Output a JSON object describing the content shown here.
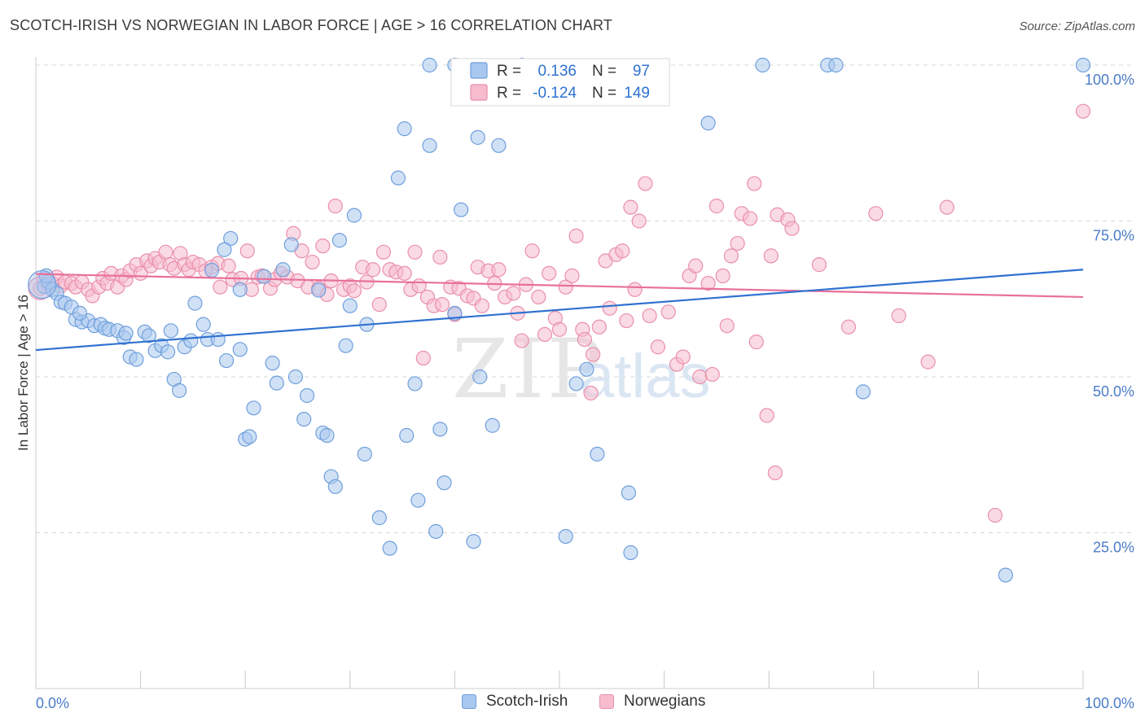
{
  "header": {
    "title": "SCOTCH-IRISH VS NORWEGIAN IN LABOR FORCE | AGE > 16 CORRELATION CHART",
    "source": "Source: ZipAtlas.com"
  },
  "watermark": {
    "zip": "ZIP",
    "atlas": "atlas"
  },
  "colors": {
    "blue_fill": "#a9c8ef",
    "blue_stroke": "#6f9fdc",
    "blue_line": "#2f72d0",
    "pink_fill": "#f6bccd",
    "pink_stroke": "#ea8fab",
    "pink_line": "#e8709a",
    "tick_text": "#4a7cc7",
    "grid": "#d7d7d7"
  },
  "legend": {
    "r_label": "R =",
    "n_label": "N =",
    "rows": [
      {
        "series": "Scotch-Irish",
        "r": "0.136",
        "n": "97"
      },
      {
        "series": "Norwegians",
        "r": "-0.124",
        "n": "149"
      }
    ]
  },
  "chart_data": {
    "type": "scatter",
    "title": "SCOTCH-IRISH VS NORWEGIAN IN LABOR FORCE | AGE > 16 CORRELATION CHART",
    "xlabel": "",
    "ylabel": "In Labor Force | Age > 16",
    "xlim": [
      0,
      100
    ],
    "ylim": [
      0,
      100
    ],
    "x_tick_labels": [
      "0.0%",
      "100.0%"
    ],
    "y_ticks": [
      25,
      50,
      75,
      100
    ],
    "y_tick_labels": [
      "25.0%",
      "50.0%",
      "75.0%",
      "100.0%"
    ],
    "grid": true,
    "legend_position": "top-center",
    "series": [
      {
        "name": "Scotch-Irish",
        "r": 0.136,
        "n": 97,
        "trend": [
          [
            0,
            54.3
          ],
          [
            100,
            67.2
          ]
        ],
        "points": [
          [
            0.8,
            64.5
          ],
          [
            1.2,
            65.2
          ],
          [
            1.6,
            64.0
          ],
          [
            2.0,
            63.4
          ],
          [
            2.4,
            62.0
          ],
          [
            2.8,
            61.8
          ],
          [
            3.4,
            61.2
          ],
          [
            3.8,
            59.2
          ],
          [
            4.4,
            58.8
          ],
          [
            5.0,
            59.0
          ],
          [
            5.6,
            58.2
          ],
          [
            6.2,
            58.4
          ],
          [
            6.6,
            57.8
          ],
          [
            7.0,
            57.6
          ],
          [
            7.8,
            57.4
          ],
          [
            8.4,
            56.3
          ],
          [
            9.0,
            53.2
          ],
          [
            9.6,
            52.8
          ],
          [
            10.4,
            57.2
          ],
          [
            10.8,
            56.6
          ],
          [
            11.4,
            54.2
          ],
          [
            12.0,
            55.0
          ],
          [
            12.6,
            54.0
          ],
          [
            12.9,
            57.4
          ],
          [
            13.2,
            49.6
          ],
          [
            13.7,
            47.8
          ],
          [
            14.2,
            54.8
          ],
          [
            14.8,
            55.8
          ],
          [
            15.2,
            61.8
          ],
          [
            16.0,
            58.4
          ],
          [
            16.4,
            56.0
          ],
          [
            16.8,
            67.1
          ],
          [
            17.4,
            56.0
          ],
          [
            18.2,
            52.6
          ],
          [
            18.6,
            72.2
          ],
          [
            18.0,
            70.4
          ],
          [
            19.5,
            54.4
          ],
          [
            20.0,
            40.0
          ],
          [
            20.4,
            40.4
          ],
          [
            20.8,
            45.0
          ],
          [
            21.8,
            66.1
          ],
          [
            22.6,
            52.2
          ],
          [
            23.0,
            49.0
          ],
          [
            23.6,
            67.2
          ],
          [
            24.4,
            71.2
          ],
          [
            24.8,
            50.0
          ],
          [
            25.6,
            43.2
          ],
          [
            25.9,
            47.0
          ],
          [
            27.0,
            63.9
          ],
          [
            27.4,
            41.0
          ],
          [
            27.8,
            40.6
          ],
          [
            28.2,
            34.0
          ],
          [
            28.6,
            32.4
          ],
          [
            29.0,
            71.9
          ],
          [
            29.6,
            55.0
          ],
          [
            30.0,
            61.4
          ],
          [
            30.4,
            75.9
          ],
          [
            31.4,
            37.6
          ],
          [
            31.6,
            58.4
          ],
          [
            32.8,
            27.4
          ],
          [
            33.8,
            22.5
          ],
          [
            34.6,
            81.9
          ],
          [
            35.2,
            89.8
          ],
          [
            36.2,
            48.9
          ],
          [
            36.5,
            30.2
          ],
          [
            35.4,
            40.6
          ],
          [
            37.6,
            87.1
          ],
          [
            37.6,
            100.0
          ],
          [
            38.2,
            25.2
          ],
          [
            38.6,
            41.6
          ],
          [
            39.0,
            33.0
          ],
          [
            40.0,
            60.2
          ],
          [
            40.0,
            100.0
          ],
          [
            40.6,
            76.8
          ],
          [
            41.8,
            23.6
          ],
          [
            42.2,
            88.4
          ],
          [
            42.4,
            50.0
          ],
          [
            43.6,
            42.2
          ],
          [
            44.2,
            87.1
          ],
          [
            46.4,
            100.0
          ],
          [
            50.6,
            24.4
          ],
          [
            51.6,
            48.9
          ],
          [
            52.6,
            51.2
          ],
          [
            53.6,
            37.6
          ],
          [
            56.6,
            31.4
          ],
          [
            56.8,
            21.8
          ],
          [
            64.2,
            90.7
          ],
          [
            69.4,
            100.0
          ],
          [
            75.6,
            100.0
          ],
          [
            76.4,
            100.0
          ],
          [
            79.0,
            47.6
          ],
          [
            92.6,
            18.2
          ],
          [
            100.0,
            100.0
          ],
          [
            1.0,
            66.2
          ],
          [
            19.5,
            64.0
          ],
          [
            8.6,
            57.0
          ],
          [
            4.2,
            60.2
          ]
        ]
      },
      {
        "name": "Norwegians",
        "r": -0.124,
        "n": 149,
        "trend": [
          [
            0,
            66.5
          ],
          [
            100,
            62.8
          ]
        ],
        "points": [
          [
            0.4,
            64.2
          ],
          [
            0.8,
            65.6
          ],
          [
            1.2,
            64.8
          ],
          [
            1.6,
            65.0
          ],
          [
            2.0,
            66.0
          ],
          [
            2.4,
            64.6
          ],
          [
            2.8,
            65.2
          ],
          [
            3.4,
            65.0
          ],
          [
            3.8,
            64.4
          ],
          [
            4.4,
            65.2
          ],
          [
            5.0,
            64.0
          ],
          [
            5.4,
            63.0
          ],
          [
            6.0,
            64.4
          ],
          [
            6.4,
            65.8
          ],
          [
            6.8,
            65.0
          ],
          [
            7.2,
            66.6
          ],
          [
            7.8,
            64.4
          ],
          [
            8.2,
            66.2
          ],
          [
            8.6,
            65.6
          ],
          [
            9.0,
            67.0
          ],
          [
            9.6,
            68.0
          ],
          [
            10.0,
            66.6
          ],
          [
            10.6,
            68.6
          ],
          [
            11.0,
            67.8
          ],
          [
            11.4,
            69.0
          ],
          [
            11.8,
            68.4
          ],
          [
            12.4,
            70.0
          ],
          [
            12.8,
            68.0
          ],
          [
            13.2,
            67.4
          ],
          [
            13.8,
            69.8
          ],
          [
            14.2,
            68.0
          ],
          [
            14.6,
            67.2
          ],
          [
            15.0,
            68.4
          ],
          [
            15.6,
            68.0
          ],
          [
            16.2,
            67.0
          ],
          [
            16.8,
            67.6
          ],
          [
            17.4,
            68.2
          ],
          [
            17.6,
            64.4
          ],
          [
            18.4,
            67.8
          ],
          [
            18.8,
            65.6
          ],
          [
            19.6,
            65.8
          ],
          [
            20.2,
            70.2
          ],
          [
            20.6,
            64.0
          ],
          [
            21.2,
            66.0
          ],
          [
            21.6,
            66.2
          ],
          [
            22.4,
            64.2
          ],
          [
            22.8,
            65.6
          ],
          [
            23.4,
            66.6
          ],
          [
            24.0,
            66.0
          ],
          [
            24.6,
            73.0
          ],
          [
            25.0,
            65.4
          ],
          [
            25.4,
            70.2
          ],
          [
            26.0,
            64.4
          ],
          [
            26.4,
            68.4
          ],
          [
            27.0,
            64.2
          ],
          [
            27.4,
            71.0
          ],
          [
            27.8,
            63.2
          ],
          [
            28.2,
            65.4
          ],
          [
            28.6,
            77.4
          ],
          [
            29.4,
            64.0
          ],
          [
            30.0,
            64.6
          ],
          [
            30.4,
            63.8
          ],
          [
            31.2,
            67.6
          ],
          [
            31.6,
            65.2
          ],
          [
            32.2,
            67.2
          ],
          [
            32.8,
            61.6
          ],
          [
            33.2,
            70.0
          ],
          [
            33.8,
            67.2
          ],
          [
            34.4,
            66.8
          ],
          [
            35.2,
            66.6
          ],
          [
            35.8,
            64.0
          ],
          [
            36.2,
            70.0
          ],
          [
            36.6,
            64.6
          ],
          [
            37.4,
            62.8
          ],
          [
            38.0,
            61.4
          ],
          [
            38.6,
            69.2
          ],
          [
            38.8,
            61.6
          ],
          [
            39.6,
            64.4
          ],
          [
            40.0,
            60.0
          ],
          [
            40.4,
            64.2
          ],
          [
            41.2,
            63.0
          ],
          [
            41.8,
            62.6
          ],
          [
            42.2,
            67.6
          ],
          [
            42.6,
            61.4
          ],
          [
            43.2,
            67.0
          ],
          [
            43.8,
            65.0
          ],
          [
            44.2,
            67.2
          ],
          [
            44.8,
            62.8
          ],
          [
            45.6,
            63.4
          ],
          [
            46.0,
            60.2
          ],
          [
            46.4,
            55.8
          ],
          [
            46.8,
            64.8
          ],
          [
            47.4,
            70.2
          ],
          [
            48.0,
            62.8
          ],
          [
            48.6,
            56.8
          ],
          [
            49.0,
            66.6
          ],
          [
            49.6,
            59.4
          ],
          [
            50.0,
            57.6
          ],
          [
            50.6,
            64.4
          ],
          [
            51.2,
            66.2
          ],
          [
            51.6,
            72.6
          ],
          [
            52.2,
            57.6
          ],
          [
            52.4,
            56.0
          ],
          [
            53.2,
            53.6
          ],
          [
            53.8,
            58.0
          ],
          [
            54.4,
            68.6
          ],
          [
            54.8,
            61.0
          ],
          [
            55.4,
            69.6
          ],
          [
            56.0,
            70.2
          ],
          [
            56.4,
            59.0
          ],
          [
            56.8,
            77.2
          ],
          [
            57.2,
            64.0
          ],
          [
            57.6,
            75.0
          ],
          [
            58.2,
            81.0
          ],
          [
            58.6,
            59.8
          ],
          [
            59.4,
            54.8
          ],
          [
            60.4,
            60.4
          ],
          [
            61.2,
            52.0
          ],
          [
            61.8,
            53.2
          ],
          [
            62.4,
            66.2
          ],
          [
            63.0,
            67.8
          ],
          [
            63.4,
            50.0
          ],
          [
            64.2,
            65.0
          ],
          [
            64.6,
            50.4
          ],
          [
            65.0,
            77.4
          ],
          [
            65.6,
            66.2
          ],
          [
            66.0,
            58.2
          ],
          [
            66.4,
            69.4
          ],
          [
            67.0,
            71.4
          ],
          [
            67.4,
            76.2
          ],
          [
            68.2,
            75.4
          ],
          [
            68.6,
            81.0
          ],
          [
            68.8,
            55.6
          ],
          [
            69.8,
            43.8
          ],
          [
            70.2,
            69.4
          ],
          [
            70.6,
            34.6
          ],
          [
            70.8,
            76.0
          ],
          [
            71.8,
            75.2
          ],
          [
            72.2,
            73.8
          ],
          [
            74.8,
            68.0
          ],
          [
            77.6,
            58.0
          ],
          [
            80.2,
            76.2
          ],
          [
            82.4,
            59.8
          ],
          [
            85.2,
            52.4
          ],
          [
            87.0,
            77.2
          ],
          [
            91.6,
            27.8
          ],
          [
            100.0,
            92.6
          ],
          [
            37.0,
            53.0
          ],
          [
            53.0,
            47.4
          ]
        ]
      }
    ]
  },
  "bottom_legend": [
    {
      "label": "Scotch-Irish"
    },
    {
      "label": "Norwegians"
    }
  ]
}
